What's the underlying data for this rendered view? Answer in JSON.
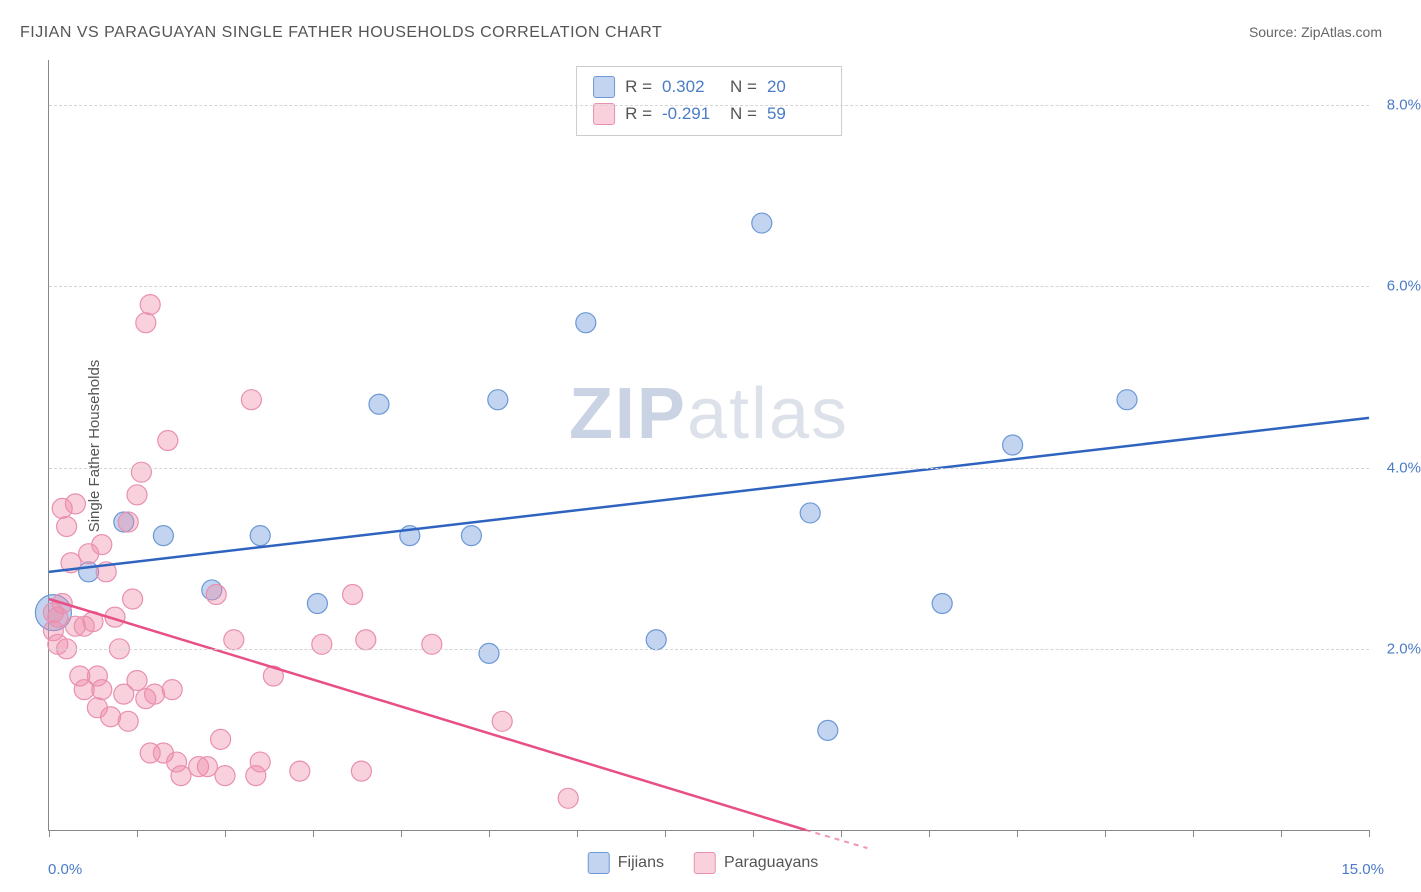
{
  "title": "FIJIAN VS PARAGUAYAN SINGLE FATHER HOUSEHOLDS CORRELATION CHART",
  "source_prefix": "Source: ",
  "source_name": "ZipAtlas.com",
  "y_axis_label": "Single Father Households",
  "watermark_bold": "ZIP",
  "watermark_rest": "atlas",
  "chart": {
    "type": "scatter",
    "xlim": [
      0,
      15
    ],
    "ylim": [
      0,
      8.5
    ],
    "x_range_min_label": "0.0%",
    "x_range_max_label": "15.0%",
    "y_ticks": [
      {
        "v": 2.0,
        "label": "2.0%"
      },
      {
        "v": 4.0,
        "label": "4.0%"
      },
      {
        "v": 6.0,
        "label": "6.0%"
      },
      {
        "v": 8.0,
        "label": "8.0%"
      }
    ],
    "x_tick_positions": [
      0,
      1,
      2,
      3,
      4,
      5,
      6,
      7,
      8,
      9,
      10,
      11,
      12,
      13,
      14,
      15
    ],
    "background_color": "#ffffff",
    "grid_color": "#d5d5d5",
    "series": [
      {
        "id": "fijians",
        "label": "Fijians",
        "color_fill": "rgba(120,160,220,0.45)",
        "color_stroke": "#6b98d6",
        "trend_color": "#2f63c0",
        "R": "0.302",
        "N": "20",
        "marker_r": 10,
        "trend": {
          "x1": 0,
          "y1": 2.85,
          "x2": 15,
          "y2": 4.55
        },
        "points": [
          {
            "x": 0.05,
            "y": 2.4,
            "r": 18
          },
          {
            "x": 0.45,
            "y": 2.85
          },
          {
            "x": 0.85,
            "y": 3.4
          },
          {
            "x": 1.3,
            "y": 3.25
          },
          {
            "x": 1.85,
            "y": 2.65
          },
          {
            "x": 2.4,
            "y": 3.25
          },
          {
            "x": 3.05,
            "y": 2.5
          },
          {
            "x": 3.75,
            "y": 4.7
          },
          {
            "x": 4.1,
            "y": 3.25
          },
          {
            "x": 4.8,
            "y": 3.25
          },
          {
            "x": 5.0,
            "y": 1.95
          },
          {
            "x": 5.1,
            "y": 4.75
          },
          {
            "x": 6.1,
            "y": 5.6
          },
          {
            "x": 6.9,
            "y": 2.1
          },
          {
            "x": 8.1,
            "y": 6.7
          },
          {
            "x": 8.65,
            "y": 3.5
          },
          {
            "x": 8.85,
            "y": 1.1
          },
          {
            "x": 10.15,
            "y": 2.5
          },
          {
            "x": 10.95,
            "y": 4.25
          },
          {
            "x": 12.25,
            "y": 4.75
          }
        ]
      },
      {
        "id": "paraguayans",
        "label": "Paraguayans",
        "color_fill": "rgba(240,140,170,0.40)",
        "color_stroke": "#e98fb0",
        "trend_color": "#e94f87",
        "R": "-0.291",
        "N": "59",
        "marker_r": 10,
        "trend": {
          "x1": 0,
          "y1": 2.55,
          "x2": 8.6,
          "y2": 0.0
        },
        "trend_dashed_ext": {
          "x1": 8.6,
          "y1": 0.0,
          "x2": 9.3,
          "y2": -0.2
        },
        "points": [
          {
            "x": 0.05,
            "y": 2.4
          },
          {
            "x": 0.05,
            "y": 2.2
          },
          {
            "x": 0.1,
            "y": 2.35
          },
          {
            "x": 0.1,
            "y": 2.05
          },
          {
            "x": 0.15,
            "y": 3.55
          },
          {
            "x": 0.15,
            "y": 2.5
          },
          {
            "x": 0.2,
            "y": 3.35
          },
          {
            "x": 0.2,
            "y": 2.0
          },
          {
            "x": 0.25,
            "y": 2.95
          },
          {
            "x": 0.3,
            "y": 3.6
          },
          {
            "x": 0.3,
            "y": 2.25
          },
          {
            "x": 0.35,
            "y": 1.7
          },
          {
            "x": 0.4,
            "y": 2.25
          },
          {
            "x": 0.4,
            "y": 1.55
          },
          {
            "x": 0.45,
            "y": 3.05
          },
          {
            "x": 0.5,
            "y": 2.3
          },
          {
            "x": 0.55,
            "y": 1.35
          },
          {
            "x": 0.55,
            "y": 1.7
          },
          {
            "x": 0.6,
            "y": 3.15
          },
          {
            "x": 0.6,
            "y": 1.55
          },
          {
            "x": 0.65,
            "y": 2.85
          },
          {
            "x": 0.7,
            "y": 1.25
          },
          {
            "x": 0.75,
            "y": 2.35
          },
          {
            "x": 0.8,
            "y": 2.0
          },
          {
            "x": 0.85,
            "y": 1.5
          },
          {
            "x": 0.9,
            "y": 3.4
          },
          {
            "x": 0.9,
            "y": 1.2
          },
          {
            "x": 0.95,
            "y": 2.55
          },
          {
            "x": 1.0,
            "y": 3.7
          },
          {
            "x": 1.0,
            "y": 1.65
          },
          {
            "x": 1.05,
            "y": 3.95
          },
          {
            "x": 1.1,
            "y": 5.6
          },
          {
            "x": 1.1,
            "y": 1.45
          },
          {
            "x": 1.15,
            "y": 5.8
          },
          {
            "x": 1.15,
            "y": 0.85
          },
          {
            "x": 1.2,
            "y": 1.5
          },
          {
            "x": 1.3,
            "y": 0.85
          },
          {
            "x": 1.35,
            "y": 4.3
          },
          {
            "x": 1.4,
            "y": 1.55
          },
          {
            "x": 1.45,
            "y": 0.75
          },
          {
            "x": 1.5,
            "y": 0.6
          },
          {
            "x": 1.7,
            "y": 0.7
          },
          {
            "x": 1.8,
            "y": 0.7
          },
          {
            "x": 1.9,
            "y": 2.6
          },
          {
            "x": 1.95,
            "y": 1.0
          },
          {
            "x": 2.0,
            "y": 0.6
          },
          {
            "x": 2.1,
            "y": 2.1
          },
          {
            "x": 2.3,
            "y": 4.75
          },
          {
            "x": 2.35,
            "y": 0.6
          },
          {
            "x": 2.4,
            "y": 0.75
          },
          {
            "x": 2.55,
            "y": 1.7
          },
          {
            "x": 2.85,
            "y": 0.65
          },
          {
            "x": 3.1,
            "y": 2.05
          },
          {
            "x": 3.45,
            "y": 2.6
          },
          {
            "x": 3.55,
            "y": 0.65
          },
          {
            "x": 3.6,
            "y": 2.1
          },
          {
            "x": 4.35,
            "y": 2.05
          },
          {
            "x": 5.15,
            "y": 1.2
          },
          {
            "x": 5.9,
            "y": 0.35
          }
        ]
      }
    ]
  },
  "colors": {
    "axis": "#888888",
    "text": "#555555",
    "value_text": "#4a7bc8"
  }
}
